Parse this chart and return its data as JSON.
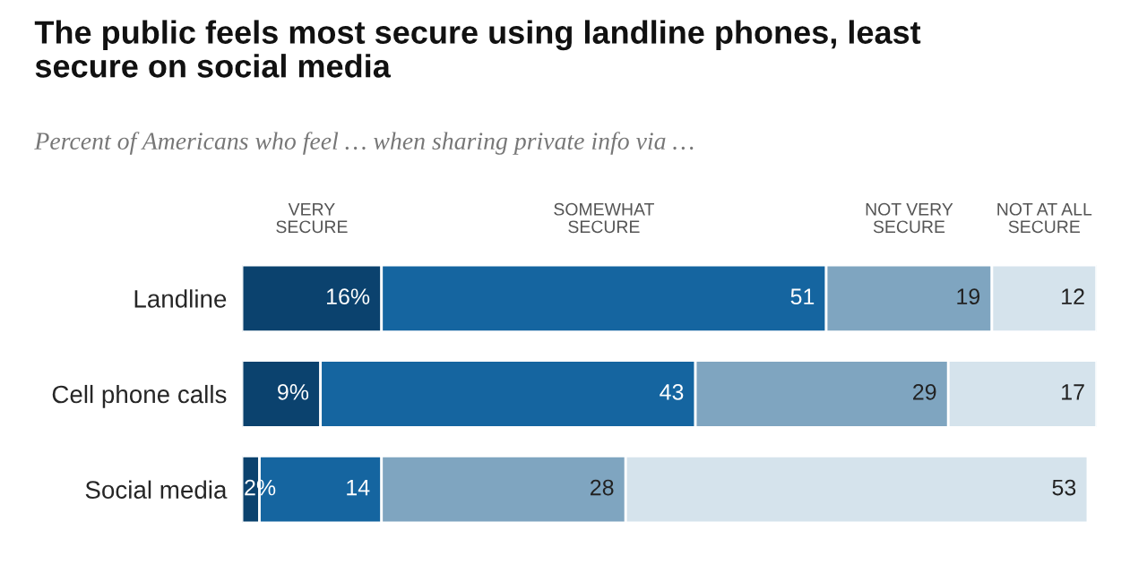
{
  "chart_data": {
    "type": "bar",
    "orientation": "horizontal",
    "stacked": true,
    "title": "The public feels most secure using landline phones, least\nsecure on social media",
    "subtitle": "Percent of Americans who feel … when sharing private info via …",
    "categories": [
      "Landline",
      "Cell phone calls",
      "Social media"
    ],
    "series": [
      {
        "name": "VERY\nSECURE",
        "color": "#0b426e",
        "values": [
          16,
          9,
          2
        ],
        "value_labels": [
          "16%",
          "9%",
          "2%"
        ]
      },
      {
        "name": "SOMEWHAT\nSECURE",
        "color": "#1565a0",
        "values": [
          51,
          43,
          14
        ],
        "value_labels": [
          "51",
          "43",
          "14"
        ]
      },
      {
        "name": "NOT VERY\nSECURE",
        "color": "#7fa5c0",
        "values": [
          19,
          29,
          28
        ],
        "value_labels": [
          "19",
          "29",
          "28"
        ]
      },
      {
        "name": "NOT AT ALL\nSECURE",
        "color": "#d5e3ec",
        "values": [
          12,
          17,
          53
        ],
        "value_labels": [
          "12",
          "17",
          "53"
        ]
      }
    ],
    "legend": "top"
  }
}
